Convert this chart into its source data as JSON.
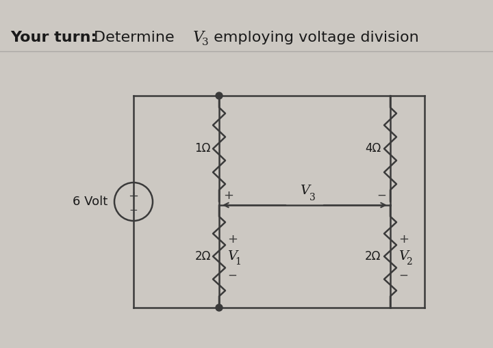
{
  "title_bold": "Your turn:",
  "title_normal": " Determine ",
  "title_v3": "V",
  "title_sub": "3",
  "title_end": " employing voltage division",
  "bg_color": "#c8c4be",
  "panel_color": "#d4d0ca",
  "line_color": "#3a3a3a",
  "text_color": "#1a1a1a",
  "source_label": "6 Volt",
  "R1_label": "1Ω",
  "R2_label": "4Ω",
  "R3_label": "2Ω",
  "R4_label": "2Ω",
  "V3_label": "V",
  "V3_sub": "3",
  "V1_label": "V",
  "V1_sub": "1",
  "V2_label": "V",
  "V2_sub": "2"
}
